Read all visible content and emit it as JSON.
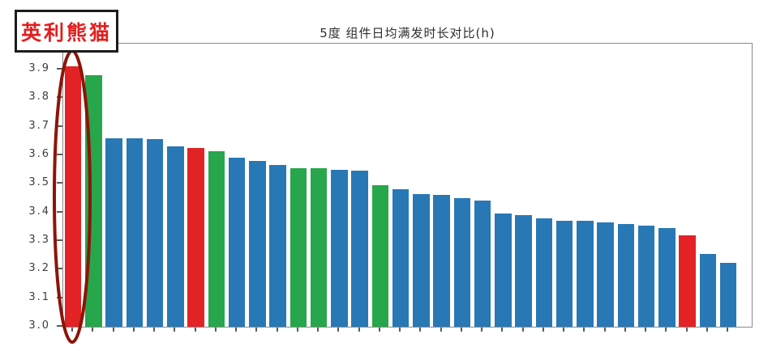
{
  "page": {
    "background": "#ffffff"
  },
  "annotation": {
    "label": "英利熊猫",
    "label_color": "#E31E1E",
    "box_border_color": "#1C1C1C",
    "ellipse_color": "#8B1508",
    "highlighted_bar_index": 0
  },
  "chart_data": {
    "type": "bar",
    "title": "5度 组件日均满发时长对比(h)",
    "xlabel": "",
    "ylabel": "",
    "ylim": [
      3.0,
      3.99
    ],
    "grid": false,
    "legend_visible": false,
    "x_tick_labels_visible": false,
    "y_tick_labels": [
      "3.0",
      "3.1",
      "3.2",
      "3.3",
      "3.4",
      "3.5",
      "3.6",
      "3.7",
      "3.8",
      "3.9"
    ],
    "y_tick_values": [
      3.0,
      3.1,
      3.2,
      3.3,
      3.4,
      3.5,
      3.6,
      3.7,
      3.8,
      3.9
    ],
    "values": [
      3.91,
      3.88,
      3.66,
      3.66,
      3.655,
      3.63,
      3.625,
      3.615,
      3.59,
      3.58,
      3.565,
      3.555,
      3.555,
      3.55,
      3.545,
      3.495,
      3.48,
      3.465,
      3.46,
      3.45,
      3.44,
      3.395,
      3.39,
      3.38,
      3.37,
      3.37,
      3.365,
      3.36,
      3.355,
      3.345,
      3.32,
      3.255,
      3.225
    ],
    "bar_colors": [
      "red",
      "green",
      "blue",
      "blue",
      "blue",
      "blue",
      "red",
      "green",
      "blue",
      "blue",
      "blue",
      "green",
      "green",
      "blue",
      "blue",
      "green",
      "blue",
      "blue",
      "blue",
      "blue",
      "blue",
      "blue",
      "blue",
      "blue",
      "blue",
      "blue",
      "blue",
      "blue",
      "blue",
      "blue",
      "red",
      "blue",
      "blue"
    ],
    "color_map": {
      "blue": "#2878B5",
      "green": "#27A64C",
      "red": "#E32226"
    }
  }
}
